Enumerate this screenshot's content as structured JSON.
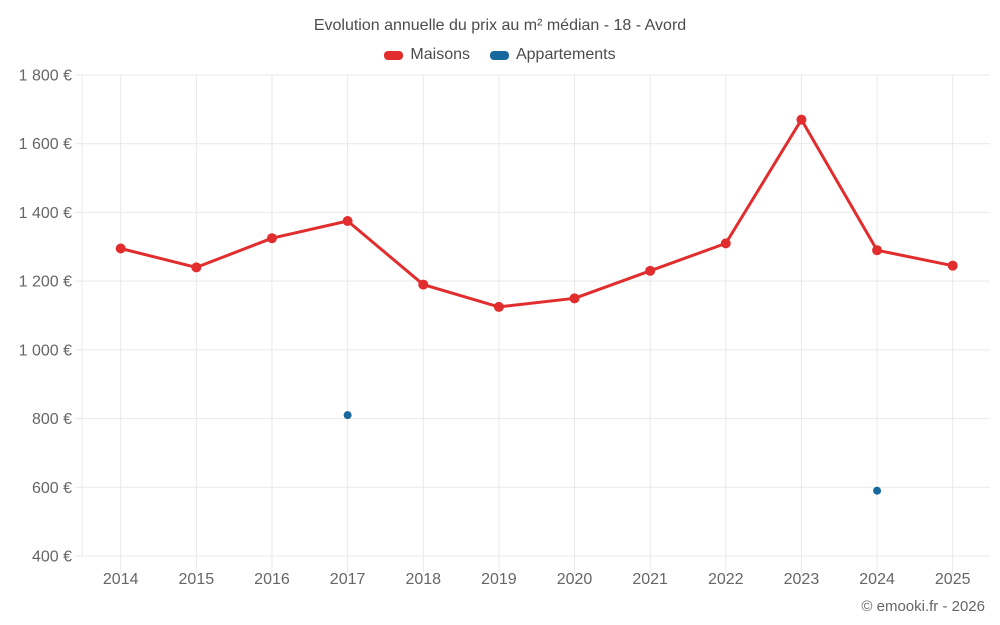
{
  "footer": {
    "copyright": "© emooki.fr - 2026"
  },
  "chart_data": {
    "type": "line",
    "title": "Evolution annuelle du prix au m² médian - 18 - Avord",
    "categories": [
      "2014",
      "2015",
      "2016",
      "2017",
      "2018",
      "2019",
      "2020",
      "2021",
      "2022",
      "2023",
      "2024",
      "2025"
    ],
    "series": [
      {
        "name": "Maisons",
        "type": "line",
        "color": "#e12d2d",
        "values": [
          1295,
          1240,
          1325,
          1375,
          1190,
          1125,
          1150,
          1230,
          1310,
          1670,
          1290,
          1245
        ]
      },
      {
        "name": "Appartements",
        "type": "scatter",
        "color": "#17689d",
        "values": [
          null,
          null,
          null,
          810,
          null,
          null,
          null,
          null,
          null,
          null,
          590,
          null
        ]
      }
    ],
    "xlabel": "",
    "ylabel": "",
    "ylim": [
      400,
      1800
    ],
    "ytick_step": 200,
    "ytick_suffix": " €",
    "grid": true,
    "grid_color": "#e9e9e9",
    "legend_position": "top"
  }
}
